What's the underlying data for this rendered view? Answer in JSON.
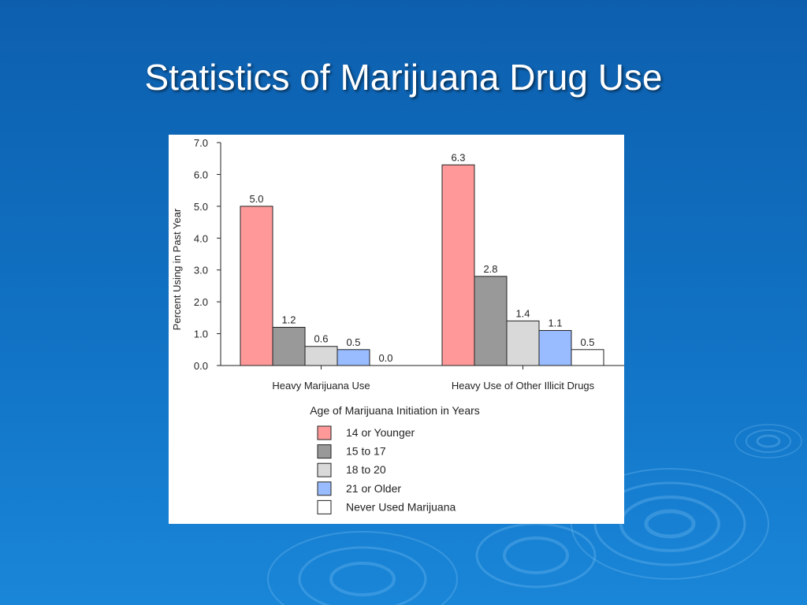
{
  "slide": {
    "title": "Statistics of Marijuana Drug Use"
  },
  "chart_data": {
    "type": "bar",
    "categories": [
      "Heavy Marijuana Use",
      "Heavy Use of Other Illicit Drugs"
    ],
    "series": [
      {
        "name": "14 or Younger",
        "color": "#ff9999",
        "values": [
          5.0,
          6.3
        ],
        "labels": [
          "5.0",
          "6.3"
        ]
      },
      {
        "name": "15 to 17",
        "color": "#999999",
        "values": [
          1.2,
          2.8
        ],
        "labels": [
          "1.2",
          "2.8"
        ]
      },
      {
        "name": "18 to 20",
        "color": "#d9d9d9",
        "values": [
          0.6,
          1.4
        ],
        "labels": [
          "0.6",
          "1.4"
        ]
      },
      {
        "name": "21 or Older",
        "color": "#99bbff",
        "values": [
          0.5,
          1.1
        ],
        "labels": [
          "0.5",
          "1.1"
        ]
      },
      {
        "name": "Never Used Marijuana",
        "color": "#ffffff",
        "values": [
          0.0,
          0.5
        ],
        "labels": [
          "0.0",
          "0.5"
        ]
      }
    ],
    "title": "",
    "xlabel": "Age of Marijuana Initiation in Years",
    "ylabel": "Percent Using in Past Year",
    "ylim": [
      0,
      7
    ],
    "yticks": [
      "0.0",
      "1.0",
      "2.0",
      "3.0",
      "4.0",
      "5.0",
      "6.0",
      "7.0"
    ],
    "legend": "bottom",
    "grid": false
  }
}
